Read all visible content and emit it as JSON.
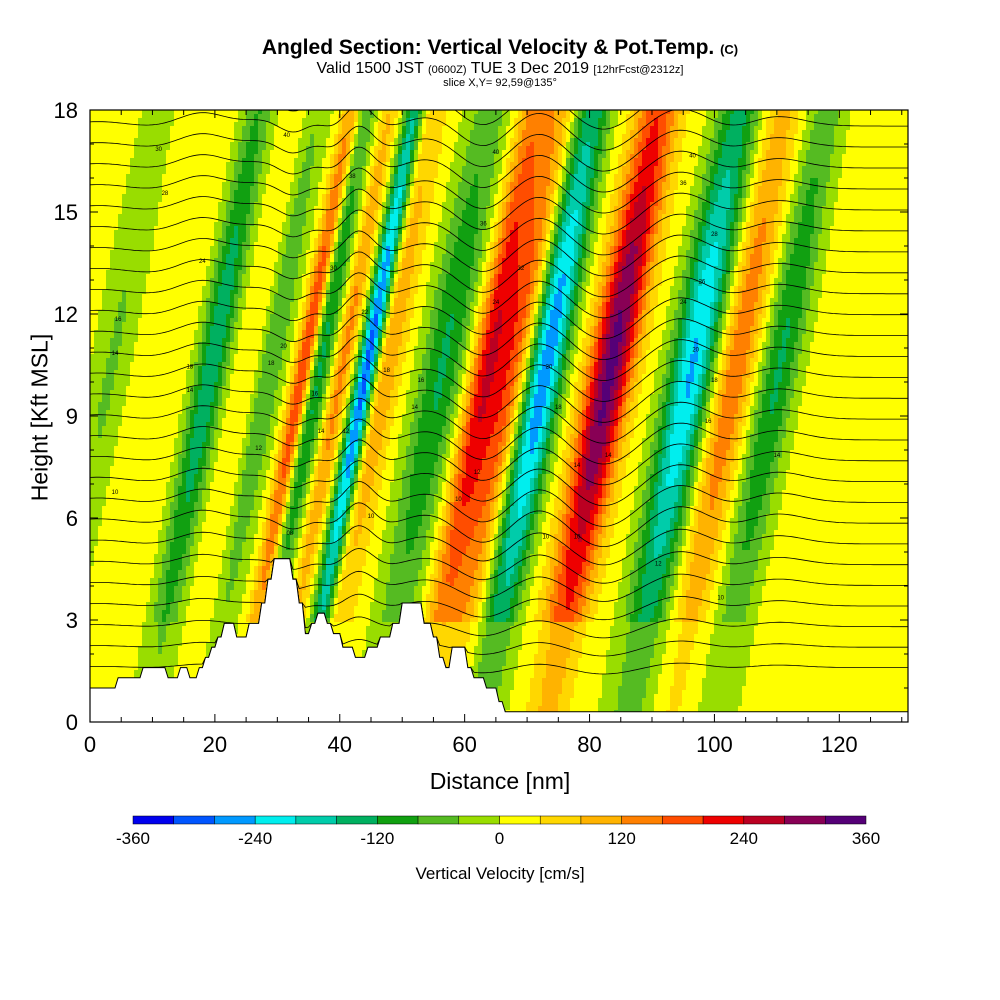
{
  "title": {
    "main": "Angled Section: Vertical Velocity & Pot.Temp.",
    "main_suffix": "(C)",
    "valid_prefix": "Valid 1500 JST",
    "valid_utc": "(0600Z)",
    "valid_date": "TUE 3 Dec 2019",
    "forecast": "[12hrFcst@2312z]",
    "slice": "slice X,Y= 92,59@135°"
  },
  "chart_data": {
    "type": "heatmap",
    "xlabel": "Distance [nm]",
    "ylabel": "Height [Kft MSL]",
    "xlim": [
      0,
      131
    ],
    "ylim": [
      0,
      18
    ],
    "x_ticks": [
      0,
      20,
      40,
      60,
      80,
      100,
      120
    ],
    "y_ticks": [
      0,
      3,
      6,
      9,
      12,
      15,
      18
    ],
    "colorbar": {
      "label": "Vertical Velocity [cm/s]",
      "ticks": [
        -360,
        -240,
        -120,
        0,
        120,
        240,
        360
      ],
      "colors": [
        "#0000ee",
        "#0055ff",
        "#0099ff",
        "#00eeee",
        "#00ccaa",
        "#00b060",
        "#11a011",
        "#55bb22",
        "#99dd00",
        "#ffff00",
        "#ffd700",
        "#ffb300",
        "#ff8000",
        "#ff4d00",
        "#ee0000",
        "#bb0022",
        "#880055",
        "#550077"
      ]
    },
    "vertical_velocity_bands": [
      {
        "x": 2,
        "w": 3,
        "v": -60
      },
      {
        "x": 10,
        "w": 4,
        "v": 20
      },
      {
        "x": 18,
        "w": 2.5,
        "v": -170
      },
      {
        "x": 25,
        "w": 2.5,
        "v": 60
      },
      {
        "x": 27,
        "w": 2.5,
        "v": -120
      },
      {
        "x": 33,
        "w": 1.6,
        "v": 230
      },
      {
        "x": 35,
        "w": 2,
        "v": -170
      },
      {
        "x": 39,
        "w": 1.5,
        "v": 120
      },
      {
        "x": 43,
        "w": 1.6,
        "v": -330
      },
      {
        "x": 46,
        "w": 2.5,
        "v": 100
      },
      {
        "x": 55,
        "w": 3.5,
        "v": -140
      },
      {
        "x": 62,
        "w": 2.5,
        "v": 200
      },
      {
        "x": 66,
        "w": 3,
        "v": 170
      },
      {
        "x": 71.5,
        "w": 3,
        "v": -290
      },
      {
        "x": 82,
        "w": 3.5,
        "v": 320
      },
      {
        "x": 95,
        "w": 3.5,
        "v": -260
      },
      {
        "x": 102,
        "w": 3,
        "v": 140
      },
      {
        "x": 109,
        "w": 3,
        "v": -140
      }
    ],
    "terrain_kft": [
      [
        0,
        1.0
      ],
      [
        4,
        1.0
      ],
      [
        4.5,
        1.3
      ],
      [
        8,
        1.3
      ],
      [
        8.5,
        1.6
      ],
      [
        12,
        1.6
      ],
      [
        12.5,
        1.3
      ],
      [
        14,
        1.3
      ],
      [
        14.5,
        1.6
      ],
      [
        15.5,
        1.6
      ],
      [
        16,
        1.3
      ],
      [
        17,
        1.3
      ],
      [
        17.5,
        1.6
      ],
      [
        18,
        1.6
      ],
      [
        18.5,
        1.9
      ],
      [
        19,
        1.9
      ],
      [
        19.5,
        2.2
      ],
      [
        20,
        2.2
      ],
      [
        20.5,
        2.5
      ],
      [
        21,
        2.5
      ],
      [
        21.5,
        2.9
      ],
      [
        23,
        2.9
      ],
      [
        23.5,
        2.5
      ],
      [
        25,
        2.5
      ],
      [
        25.5,
        2.9
      ],
      [
        27,
        2.9
      ],
      [
        27.5,
        3.5
      ],
      [
        28,
        3.5
      ],
      [
        28.5,
        4.2
      ],
      [
        29,
        4.2
      ],
      [
        29.5,
        4.8
      ],
      [
        32,
        4.8
      ],
      [
        32.5,
        4.2
      ],
      [
        33,
        4.2
      ],
      [
        33.5,
        3.5
      ],
      [
        34,
        3.5
      ],
      [
        34.5,
        2.6
      ],
      [
        35,
        2.6
      ],
      [
        35.5,
        2.9
      ],
      [
        36,
        2.9
      ],
      [
        36.5,
        3.2
      ],
      [
        37.5,
        3.2
      ],
      [
        38,
        2.9
      ],
      [
        38.5,
        2.9
      ],
      [
        39,
        2.6
      ],
      [
        40,
        2.6
      ],
      [
        40.5,
        2.2
      ],
      [
        42,
        2.2
      ],
      [
        42.5,
        1.9
      ],
      [
        44,
        1.9
      ],
      [
        44.5,
        2.2
      ],
      [
        46,
        2.2
      ],
      [
        46.5,
        2.5
      ],
      [
        48,
        2.5
      ],
      [
        48.5,
        2.9
      ],
      [
        49.5,
        2.9
      ],
      [
        50,
        3.5
      ],
      [
        53,
        3.5
      ],
      [
        53.5,
        2.9
      ],
      [
        54.5,
        2.9
      ],
      [
        55,
        2.5
      ],
      [
        55.5,
        2.5
      ],
      [
        56,
        1.9
      ],
      [
        56.5,
        1.9
      ],
      [
        57,
        1.6
      ],
      [
        57.5,
        1.6
      ],
      [
        58,
        2.2
      ],
      [
        60,
        2.2
      ],
      [
        60.5,
        1.6
      ],
      [
        61,
        1.6
      ],
      [
        61.5,
        1.3
      ],
      [
        63,
        1.3
      ],
      [
        63.5,
        1.0
      ],
      [
        65,
        1.0
      ],
      [
        65.5,
        0.6
      ],
      [
        66,
        0.6
      ],
      [
        66.5,
        0.3
      ],
      [
        71,
        0.3
      ],
      [
        71.5,
        0.3
      ],
      [
        131,
        0.3
      ]
    ],
    "isentrope_labels": [
      {
        "x": 4,
        "y": 6.7,
        "text": "10"
      },
      {
        "x": 4,
        "y": 10.8,
        "text": "14"
      },
      {
        "x": 4.5,
        "y": 11.8,
        "text": "16"
      },
      {
        "x": 11,
        "y": 16.8,
        "text": "30"
      },
      {
        "x": 12,
        "y": 15.5,
        "text": "28"
      },
      {
        "x": 18,
        "y": 13.5,
        "text": "24"
      },
      {
        "x": 16,
        "y": 10.4,
        "text": "18"
      },
      {
        "x": 16,
        "y": 9.7,
        "text": "14"
      },
      {
        "x": 27,
        "y": 8.0,
        "text": "12"
      },
      {
        "x": 31.5,
        "y": 17.2,
        "text": "40"
      },
      {
        "x": 31,
        "y": 11.0,
        "text": "20"
      },
      {
        "x": 29,
        "y": 10.5,
        "text": "18"
      },
      {
        "x": 36,
        "y": 9.6,
        "text": "16"
      },
      {
        "x": 37,
        "y": 8.5,
        "text": "14"
      },
      {
        "x": 41,
        "y": 8.5,
        "text": "12"
      },
      {
        "x": 32,
        "y": 5.5,
        "text": "08"
      },
      {
        "x": 42,
        "y": 16.0,
        "text": "38"
      },
      {
        "x": 39,
        "y": 13.3,
        "text": "30"
      },
      {
        "x": 44,
        "y": 12.0,
        "text": "22"
      },
      {
        "x": 47.5,
        "y": 10.3,
        "text": "18"
      },
      {
        "x": 53,
        "y": 10.0,
        "text": "16"
      },
      {
        "x": 52,
        "y": 9.2,
        "text": "14"
      },
      {
        "x": 45,
        "y": 6.0,
        "text": "10"
      },
      {
        "x": 65,
        "y": 16.7,
        "text": "40"
      },
      {
        "x": 63,
        "y": 14.6,
        "text": "36"
      },
      {
        "x": 69,
        "y": 13.3,
        "text": "32"
      },
      {
        "x": 65,
        "y": 12.3,
        "text": "24"
      },
      {
        "x": 62,
        "y": 7.3,
        "text": "12"
      },
      {
        "x": 59,
        "y": 6.5,
        "text": "10"
      },
      {
        "x": 73.5,
        "y": 10.4,
        "text": "20"
      },
      {
        "x": 75,
        "y": 9.2,
        "text": "18"
      },
      {
        "x": 78,
        "y": 7.5,
        "text": "14"
      },
      {
        "x": 73,
        "y": 5.4,
        "text": "10"
      },
      {
        "x": 78,
        "y": 5.4,
        "text": "10"
      },
      {
        "x": 83,
        "y": 7.8,
        "text": "14"
      },
      {
        "x": 96.5,
        "y": 16.6,
        "text": "40"
      },
      {
        "x": 95,
        "y": 15.8,
        "text": "36"
      },
      {
        "x": 100,
        "y": 14.3,
        "text": "28"
      },
      {
        "x": 98,
        "y": 12.9,
        "text": "26"
      },
      {
        "x": 95,
        "y": 12.3,
        "text": "24"
      },
      {
        "x": 97,
        "y": 10.9,
        "text": "20"
      },
      {
        "x": 100,
        "y": 10.0,
        "text": "18"
      },
      {
        "x": 99,
        "y": 8.8,
        "text": "16"
      },
      {
        "x": 91,
        "y": 4.6,
        "text": "12"
      },
      {
        "x": 101,
        "y": 3.6,
        "text": "10"
      },
      {
        "x": 110,
        "y": 7.8,
        "text": "14"
      }
    ]
  }
}
